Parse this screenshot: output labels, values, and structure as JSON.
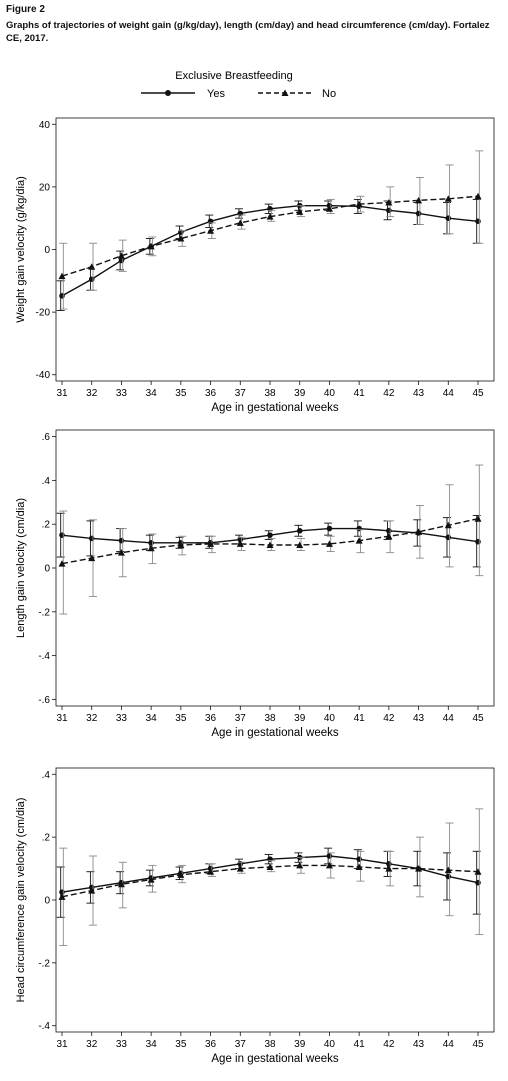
{
  "figure": {
    "label": "Figure 2",
    "caption": "Graphs of trajectories of weight gain (g/kg/day), length (cm/day) and head circumference (cm/day). Fortalez CE, 2017."
  },
  "legend": {
    "title": "Exclusive Breastfeeding",
    "items": [
      "Yes",
      "No"
    ]
  },
  "chart_data": [
    {
      "type": "line",
      "xlabel": "Age in gestational weeks",
      "ylabel": "Weight gain velocity (g/kg/dia)",
      "x": [
        31,
        32,
        33,
        34,
        35,
        36,
        37,
        38,
        39,
        40,
        41,
        42,
        43,
        44,
        45
      ],
      "xticks": [
        "31",
        "32",
        "33",
        "34",
        "35",
        "36",
        "37",
        "38",
        "39",
        "40",
        "41",
        "42",
        "43",
        "44",
        "45"
      ],
      "ylim": [
        -42,
        42
      ],
      "yticks": [
        -40,
        -20,
        0,
        20,
        40
      ],
      "ytick_labels": [
        "-40",
        "-20",
        "0",
        "20",
        "40"
      ],
      "series": [
        {
          "name": "Yes",
          "values": [
            -14.8,
            -9.5,
            -3.5,
            1,
            5.5,
            9,
            11.5,
            13,
            14,
            14,
            13.8,
            12.5,
            11.5,
            10,
            9
          ],
          "lower": [
            -19.5,
            -13,
            -6.5,
            -1.5,
            3.5,
            7,
            10,
            11.5,
            12.5,
            12.5,
            11.5,
            9.5,
            8,
            5,
            2
          ],
          "upper": [
            -10,
            -6,
            -0.5,
            3.5,
            7.5,
            11,
            13,
            14.5,
            15.5,
            15.5,
            16,
            15.5,
            15,
            15,
            16
          ]
        },
        {
          "name": "No",
          "values": [
            -8.5,
            -5.5,
            -2,
            1,
            3.5,
            6,
            8.5,
            10.5,
            12,
            13,
            14.5,
            15,
            15.7,
            16.2,
            17
          ],
          "lower": [
            -19,
            -13,
            -7,
            -2,
            1,
            3.5,
            6.5,
            9,
            10.5,
            11.5,
            12,
            10.5,
            8,
            5,
            2
          ],
          "upper": [
            2,
            2,
            3,
            4,
            6,
            8.5,
            11,
            12.5,
            14,
            16,
            17,
            20,
            23,
            27,
            31.5
          ]
        }
      ]
    },
    {
      "type": "line",
      "xlabel": "Age in gestational weeks",
      "ylabel": "Length gain velocity (cm/dia)",
      "x": [
        31,
        32,
        33,
        34,
        35,
        36,
        37,
        38,
        39,
        40,
        41,
        42,
        43,
        44,
        45
      ],
      "xticks": [
        "31",
        "32",
        "33",
        "34",
        "35",
        "36",
        "37",
        "38",
        "39",
        "40",
        "41",
        "42",
        "43",
        "44",
        "45"
      ],
      "ylim": [
        -0.63,
        0.63
      ],
      "yticks": [
        -0.6,
        -0.4,
        -0.2,
        0,
        0.2,
        0.4,
        0.6
      ],
      "ytick_labels": [
        "-.6",
        "-.4",
        "-.2",
        "0",
        ".2",
        ".4",
        ".6"
      ],
      "series": [
        {
          "name": "Yes",
          "values": [
            0.15,
            0.135,
            0.125,
            0.115,
            0.115,
            0.115,
            0.13,
            0.15,
            0.17,
            0.18,
            0.18,
            0.17,
            0.16,
            0.14,
            0.12
          ],
          "lower": [
            0.05,
            0.055,
            0.075,
            0.08,
            0.09,
            0.09,
            0.11,
            0.13,
            0.145,
            0.15,
            0.145,
            0.13,
            0.1,
            0.05,
            0.005
          ],
          "upper": [
            0.25,
            0.215,
            0.18,
            0.15,
            0.14,
            0.145,
            0.15,
            0.17,
            0.195,
            0.205,
            0.215,
            0.215,
            0.22,
            0.23,
            0.24
          ]
        },
        {
          "name": "No",
          "values": [
            0.02,
            0.045,
            0.07,
            0.09,
            0.105,
            0.11,
            0.11,
            0.105,
            0.105,
            0.11,
            0.125,
            0.145,
            0.165,
            0.195,
            0.225
          ],
          "lower": [
            -0.21,
            -0.13,
            -0.04,
            0.02,
            0.06,
            0.07,
            0.08,
            0.08,
            0.08,
            0.075,
            0.07,
            0.07,
            0.045,
            0.005,
            -0.035
          ],
          "upper": [
            0.26,
            0.22,
            0.18,
            0.155,
            0.145,
            0.145,
            0.14,
            0.135,
            0.135,
            0.145,
            0.175,
            0.215,
            0.285,
            0.38,
            0.47
          ]
        }
      ]
    },
    {
      "type": "line",
      "xlabel": "Age in gestational weeks",
      "ylabel": "Head circumference gain velocity (cm/dia)",
      "x": [
        31,
        32,
        33,
        34,
        35,
        36,
        37,
        38,
        39,
        40,
        41,
        42,
        43,
        44,
        45
      ],
      "xticks": [
        "31",
        "32",
        "33",
        "34",
        "35",
        "36",
        "37",
        "38",
        "39",
        "40",
        "41",
        "42",
        "43",
        "44",
        "45"
      ],
      "ylim": [
        -0.42,
        0.42
      ],
      "yticks": [
        -0.4,
        -0.2,
        0,
        0.2,
        0.4
      ],
      "ytick_labels": [
        "-.4",
        "-.2",
        "0",
        ".2",
        ".4"
      ],
      "series": [
        {
          "name": "Yes",
          "values": [
            0.025,
            0.04,
            0.055,
            0.07,
            0.085,
            0.1,
            0.115,
            0.13,
            0.135,
            0.14,
            0.13,
            0.115,
            0.1,
            0.075,
            0.055
          ],
          "lower": [
            -0.055,
            -0.01,
            0.02,
            0.045,
            0.065,
            0.085,
            0.1,
            0.115,
            0.12,
            0.115,
            0.1,
            0.075,
            0.045,
            0,
            -0.045
          ],
          "upper": [
            0.105,
            0.09,
            0.09,
            0.095,
            0.105,
            0.115,
            0.13,
            0.145,
            0.15,
            0.165,
            0.16,
            0.155,
            0.155,
            0.15,
            0.155
          ]
        },
        {
          "name": "No",
          "values": [
            0.01,
            0.03,
            0.05,
            0.065,
            0.08,
            0.09,
            0.1,
            0.105,
            0.11,
            0.11,
            0.105,
            0.1,
            0.1,
            0.095,
            0.09
          ],
          "lower": [
            -0.145,
            -0.08,
            -0.025,
            0.025,
            0.055,
            0.075,
            0.085,
            0.09,
            0.085,
            0.07,
            0.06,
            0.045,
            0.01,
            -0.05,
            -0.11
          ],
          "upper": [
            0.165,
            0.14,
            0.12,
            0.11,
            0.11,
            0.115,
            0.12,
            0.125,
            0.135,
            0.15,
            0.155,
            0.155,
            0.2,
            0.245,
            0.29
          ]
        }
      ]
    }
  ]
}
